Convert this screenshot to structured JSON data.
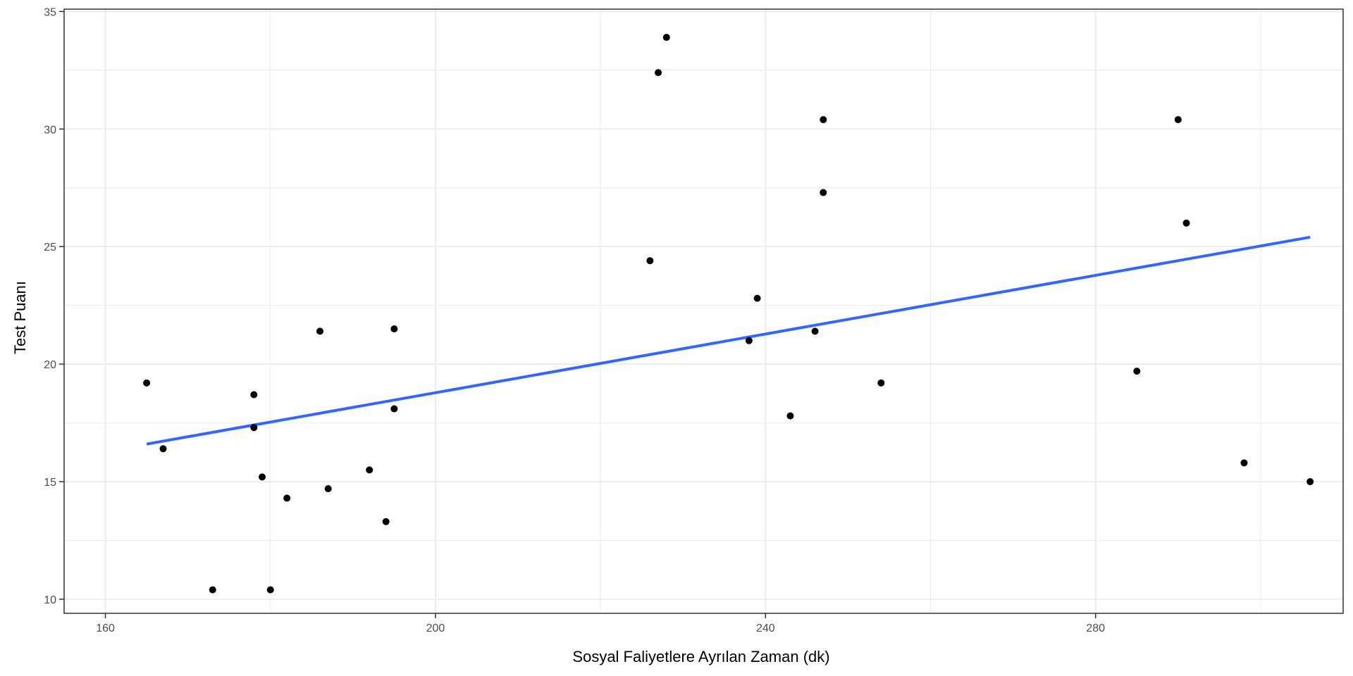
{
  "chart_data": {
    "type": "scatter",
    "title": "",
    "xlabel": "Sosyal Faliyetlere Ayrılan Zaman (dk)",
    "ylabel": "Test Puanı",
    "xlim": [
      155,
      310
    ],
    "ylim": [
      9.4,
      35.1
    ],
    "x_ticks": [
      160,
      200,
      240,
      280
    ],
    "x_tick_labels": [
      "160",
      "200",
      "240",
      "280"
    ],
    "x_minor_ticks": [
      180,
      220,
      260,
      300
    ],
    "y_ticks": [
      10,
      15,
      20,
      25,
      30,
      35
    ],
    "y_tick_labels": [
      "10",
      "15",
      "20",
      "25",
      "30",
      "35"
    ],
    "y_minor_ticks": [
      12.5,
      17.5,
      22.5,
      27.5,
      32.5
    ],
    "grid": true,
    "points": [
      {
        "x": 165,
        "y": 19.2
      },
      {
        "x": 167,
        "y": 16.4
      },
      {
        "x": 173,
        "y": 10.4
      },
      {
        "x": 178,
        "y": 18.7
      },
      {
        "x": 178,
        "y": 17.3
      },
      {
        "x": 179,
        "y": 15.2
      },
      {
        "x": 180,
        "y": 10.4
      },
      {
        "x": 182,
        "y": 14.3
      },
      {
        "x": 186,
        "y": 21.4
      },
      {
        "x": 187,
        "y": 14.7
      },
      {
        "x": 192,
        "y": 15.5
      },
      {
        "x": 194,
        "y": 13.3
      },
      {
        "x": 195,
        "y": 21.5
      },
      {
        "x": 195,
        "y": 18.1
      },
      {
        "x": 226,
        "y": 24.4
      },
      {
        "x": 227,
        "y": 32.4
      },
      {
        "x": 228,
        "y": 33.9
      },
      {
        "x": 238,
        "y": 21.0
      },
      {
        "x": 239,
        "y": 22.8
      },
      {
        "x": 243,
        "y": 17.8
      },
      {
        "x": 246,
        "y": 21.4
      },
      {
        "x": 247,
        "y": 30.4
      },
      {
        "x": 247,
        "y": 27.3
      },
      {
        "x": 254,
        "y": 19.2
      },
      {
        "x": 285,
        "y": 19.7
      },
      {
        "x": 290,
        "y": 30.4
      },
      {
        "x": 291,
        "y": 26.0
      },
      {
        "x": 298,
        "y": 15.8
      },
      {
        "x": 306,
        "y": 15.0
      }
    ],
    "fit_line": {
      "x": [
        165,
        306
      ],
      "y": [
        16.6,
        25.4
      ],
      "color": "#3366ff"
    },
    "point_color": "#000000",
    "grid_color": "#ebebeb",
    "border_color": "#333333"
  }
}
